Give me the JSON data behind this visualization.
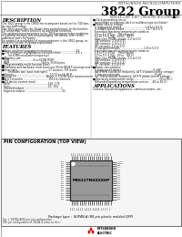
{
  "title_company": "MITSUBISHI MICROCOMPUTERS",
  "title_group": "3822 Group",
  "subtitle": "SINGLE-CHIP 8-BIT CMOS MICROCOMPUTER",
  "bg_color": "#ffffff",
  "description_title": "DESCRIPTION",
  "features_title": "FEATURES",
  "applications_title": "APPLICATIONS",
  "pin_config_title": "PIN CONFIGURATION (TOP VIEW)",
  "package_text": "Package type :  80P4N-A (80-pin plastic molded QFP)",
  "fig_caption1": "Fig. 1  80P4N-A(80-pin) pin configuration",
  "fig_caption2": "(Pin pin configuration of 3822A is same as this.)",
  "chip_label": "M38227M4XXXHP",
  "desc_lines": [
    "The 3822 group is the CMOS microcomputer based on the 740 fam-",
    "ily core technology.",
    "The 3822 group has the 16-bit timer control circuit, an 8a-function",
    "I/O connection, and a serial I/O as additional functions.",
    "The optional microcomputers in the 3822 group includes variations",
    "of external memory size and packaging. For details, refer to the",
    "additional parts list family.",
    "For product or availability of microcomputers in the 3822 group, re-",
    "fer to the section on group explanation."
  ],
  "feat_lines": [
    [
      "b",
      "Basic machine language instructions .............................74"
    ],
    [
      "b",
      "The minimum multiplication execution time ..................0.5 s"
    ],
    [
      "",
      "        (at 8 MHz oscillation frequency)"
    ],
    [
      "b",
      "Memory size"
    ],
    [
      "",
      "  ROM .............................4 to 60 KB ROM"
    ],
    [
      "",
      "  RAM .......................................160 to 1536 bytes"
    ],
    [
      "b",
      "Programmable multi-function timer"
    ],
    [
      "b",
      "Software and hardware reset functions (Ports RESET interrupt and Ste)"
    ],
    [
      "b",
      "Interrupts ......................................17 sources, 7/8 levels"
    ],
    [
      "",
      "        (includes two input interrupts)"
    ],
    [
      "b",
      "Timers .............................................10/12 to 16,38 B"
    ],
    [
      "b",
      "Serial I/O .....................................Async + 1/2/48 level measurement"
    ],
    [
      "b",
      "A-D Converter ................................8/10 4-channels"
    ],
    [
      "b",
      "I/O device control circuit"
    ],
    [
      "",
      "  Data ...............................................128, 178"
    ],
    [
      "",
      "  Sync ...............................................43, 104"
    ],
    [
      "",
      "  Inverted output ..............................................1"
    ],
    [
      "",
      "  Segment output ..............................................32"
    ]
  ],
  "right_feat": [
    [
      "b",
      "Clock generating circuit"
    ],
    [
      "",
      "  (switchable to external clock or oscillator-type oscillation)"
    ],
    [
      "b",
      "Power source voltage"
    ],
    [
      "",
      "  In high-speed modes .............................+4.5 to 5.5 V"
    ],
    [
      "",
      "  In middle speed modes ..........................+2.7 to 5.5 V"
    ],
    [
      "",
      "  Extended operating temperature variation"
    ],
    [
      "",
      "  2.5 to 5.5 V Typ:    (Stochastic)"
    ],
    [
      "",
      "  3.0 to 5.5 V Typ: -40 to   (85 F)"
    ],
    [
      "",
      "  (One-time PROM version: 2.0 to 5.5)"
    ],
    [
      "",
      "  (4K variants: 2.0 to 5.5)"
    ],
    [
      "",
      "  (8K variants: 2.0 to 5.5)"
    ],
    [
      "",
      "  (FF variants: 2.0 to 5.5)"
    ],
    [
      "",
      "  In low-speed modes .............................1.8 to 5.5 V"
    ],
    [
      "",
      "  Extended operating temperature variation"
    ],
    [
      "",
      "  1.8 to 5.5 V Typ:    (Stochastic)"
    ],
    [
      "",
      "  3.0 to 5.5 V Typ: -40 to   (85 F)"
    ],
    [
      "",
      "  (One-time PROM version: 2.0 to 5.5)"
    ],
    [
      "",
      "  (4K variants: 2.0 to 5.5)"
    ],
    [
      "",
      "  (8K variants: 2.0 to 5.5)"
    ],
    [
      "",
      "  (FF variants: 2.0 to 5.5)"
    ],
    [
      "b",
      "Power consumption"
    ],
    [
      "",
      "  In high-speed modes .......................................0 mW"
    ],
    [
      "",
      "  (All 8 MHz oscillation frequency, all 5 V power-source voltage)"
    ],
    [
      "",
      "  In low-speed modes ...........................................8 pW"
    ],
    [
      "",
      "  (all 32k oscillation frequency, all 3 V power-source voltage)"
    ],
    [
      "b",
      "Operating temperature range ...............................30 to 85 C"
    ],
    [
      "",
      "  (Extended operating temperature version :  -40 to 85 G)"
    ]
  ],
  "app_text": "Camera, household appliances, communications, etc.",
  "left_pin_labels": [
    "P00",
    "P01",
    "P02",
    "P03",
    "P04",
    "P05",
    "P06",
    "P07",
    "P10",
    "P11",
    "P12",
    "P13",
    "P14",
    "P15",
    "P16",
    "P17",
    "P20",
    "P21",
    "P22",
    "P23"
  ],
  "right_pin_labels": [
    "P70",
    "P71",
    "P72",
    "P73",
    "P74",
    "P75",
    "P76",
    "P77",
    "P60",
    "P61",
    "P62",
    "P63",
    "P64",
    "P65",
    "P66",
    "P67",
    "VCC",
    "VSS",
    "RESET",
    "TEST"
  ],
  "top_pin_labels": [
    "P30",
    "P31",
    "P32",
    "P33",
    "P34",
    "P35",
    "P36",
    "P37",
    "P40",
    "P41",
    "P42",
    "P43",
    "P44",
    "P45",
    "P46",
    "P47",
    "P50",
    "P51",
    "P52",
    "P53"
  ],
  "bottom_pin_labels": [
    "P53",
    "P52",
    "P51",
    "P50",
    "P47",
    "P46",
    "P45",
    "P44",
    "P43",
    "P42",
    "P41",
    "P40",
    "P37",
    "P36",
    "P35",
    "P34",
    "P33",
    "P32",
    "P31",
    "P30"
  ]
}
